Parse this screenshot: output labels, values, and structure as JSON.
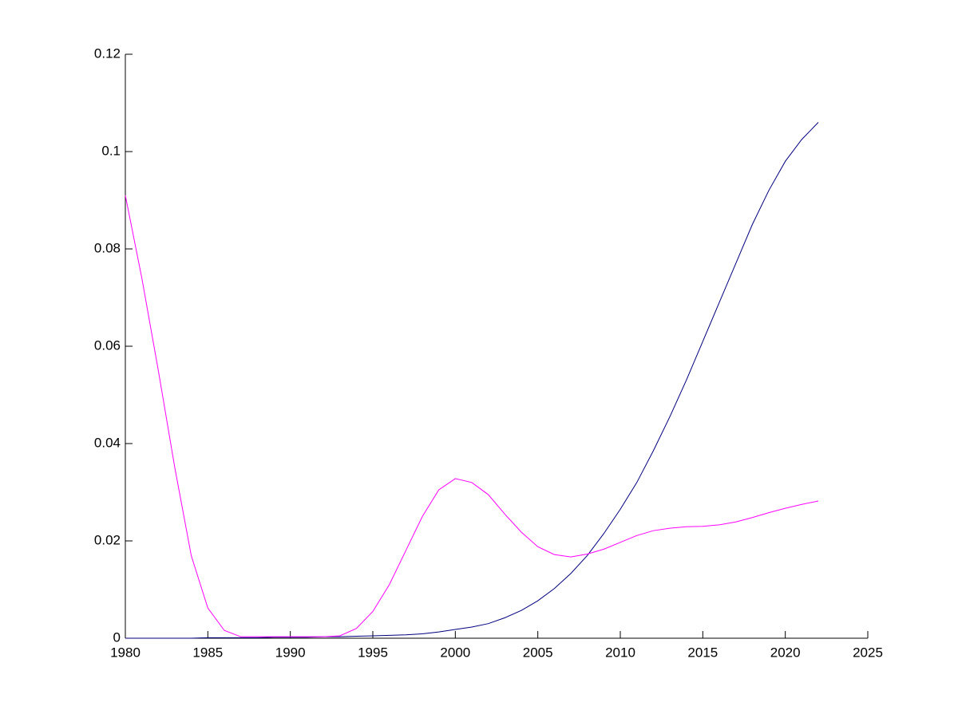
{
  "chart_data": {
    "type": "line",
    "x": [
      1980,
      1981,
      1982,
      1983,
      1984,
      1985,
      1986,
      1987,
      1988,
      1989,
      1990,
      1991,
      1992,
      1993,
      1994,
      1995,
      1996,
      1997,
      1998,
      1999,
      2000,
      2001,
      2002,
      2003,
      2004,
      2005,
      2006,
      2007,
      2008,
      2009,
      2010,
      2011,
      2012,
      2013,
      2014,
      2015,
      2016,
      2017,
      2018,
      2019,
      2020,
      2021,
      2022
    ],
    "series": [
      {
        "color": "#00007f",
        "values": [
          0,
          0,
          0,
          0,
          0,
          0.0001,
          0.0001,
          0.0001,
          0.0001,
          0.0002,
          0.0002,
          0.0002,
          0.0003,
          0.0003,
          0.0004,
          0.0005,
          0.0006,
          0.0007,
          0.0009,
          0.0013,
          0.0018,
          0.0023,
          0.003,
          0.0042,
          0.0057,
          0.0077,
          0.0102,
          0.0133,
          0.017,
          0.0215,
          0.0265,
          0.032,
          0.0385,
          0.0455,
          0.053,
          0.061,
          0.069,
          0.077,
          0.085,
          0.092,
          0.098,
          0.1025,
          0.106
        ]
      },
      {
        "color": "#ff00ff",
        "values": [
          0.091,
          0.074,
          0.055,
          0.035,
          0.0169,
          0.0062,
          0.0016,
          0.0003,
          0.0003,
          0.0003,
          0.0003,
          0.0003,
          0.0003,
          0.0005,
          0.002,
          0.0055,
          0.011,
          0.018,
          0.025,
          0.0305,
          0.0328,
          0.032,
          0.0295,
          0.0255,
          0.0218,
          0.0188,
          0.0172,
          0.0167,
          0.0173,
          0.0183,
          0.0197,
          0.0211,
          0.0221,
          0.0226,
          0.0229,
          0.023,
          0.0233,
          0.0239,
          0.0248,
          0.0258,
          0.0267,
          0.0275,
          0.0282
        ]
      }
    ],
    "xlim": [
      1980,
      2025
    ],
    "xticks": [
      1980,
      1985,
      1990,
      1995,
      2000,
      2005,
      2010,
      2015,
      2020,
      2025
    ],
    "ylim": [
      0,
      0.12
    ],
    "yticks": [
      0,
      0.02,
      0.04,
      0.06,
      0.08,
      0.1,
      0.12
    ]
  }
}
